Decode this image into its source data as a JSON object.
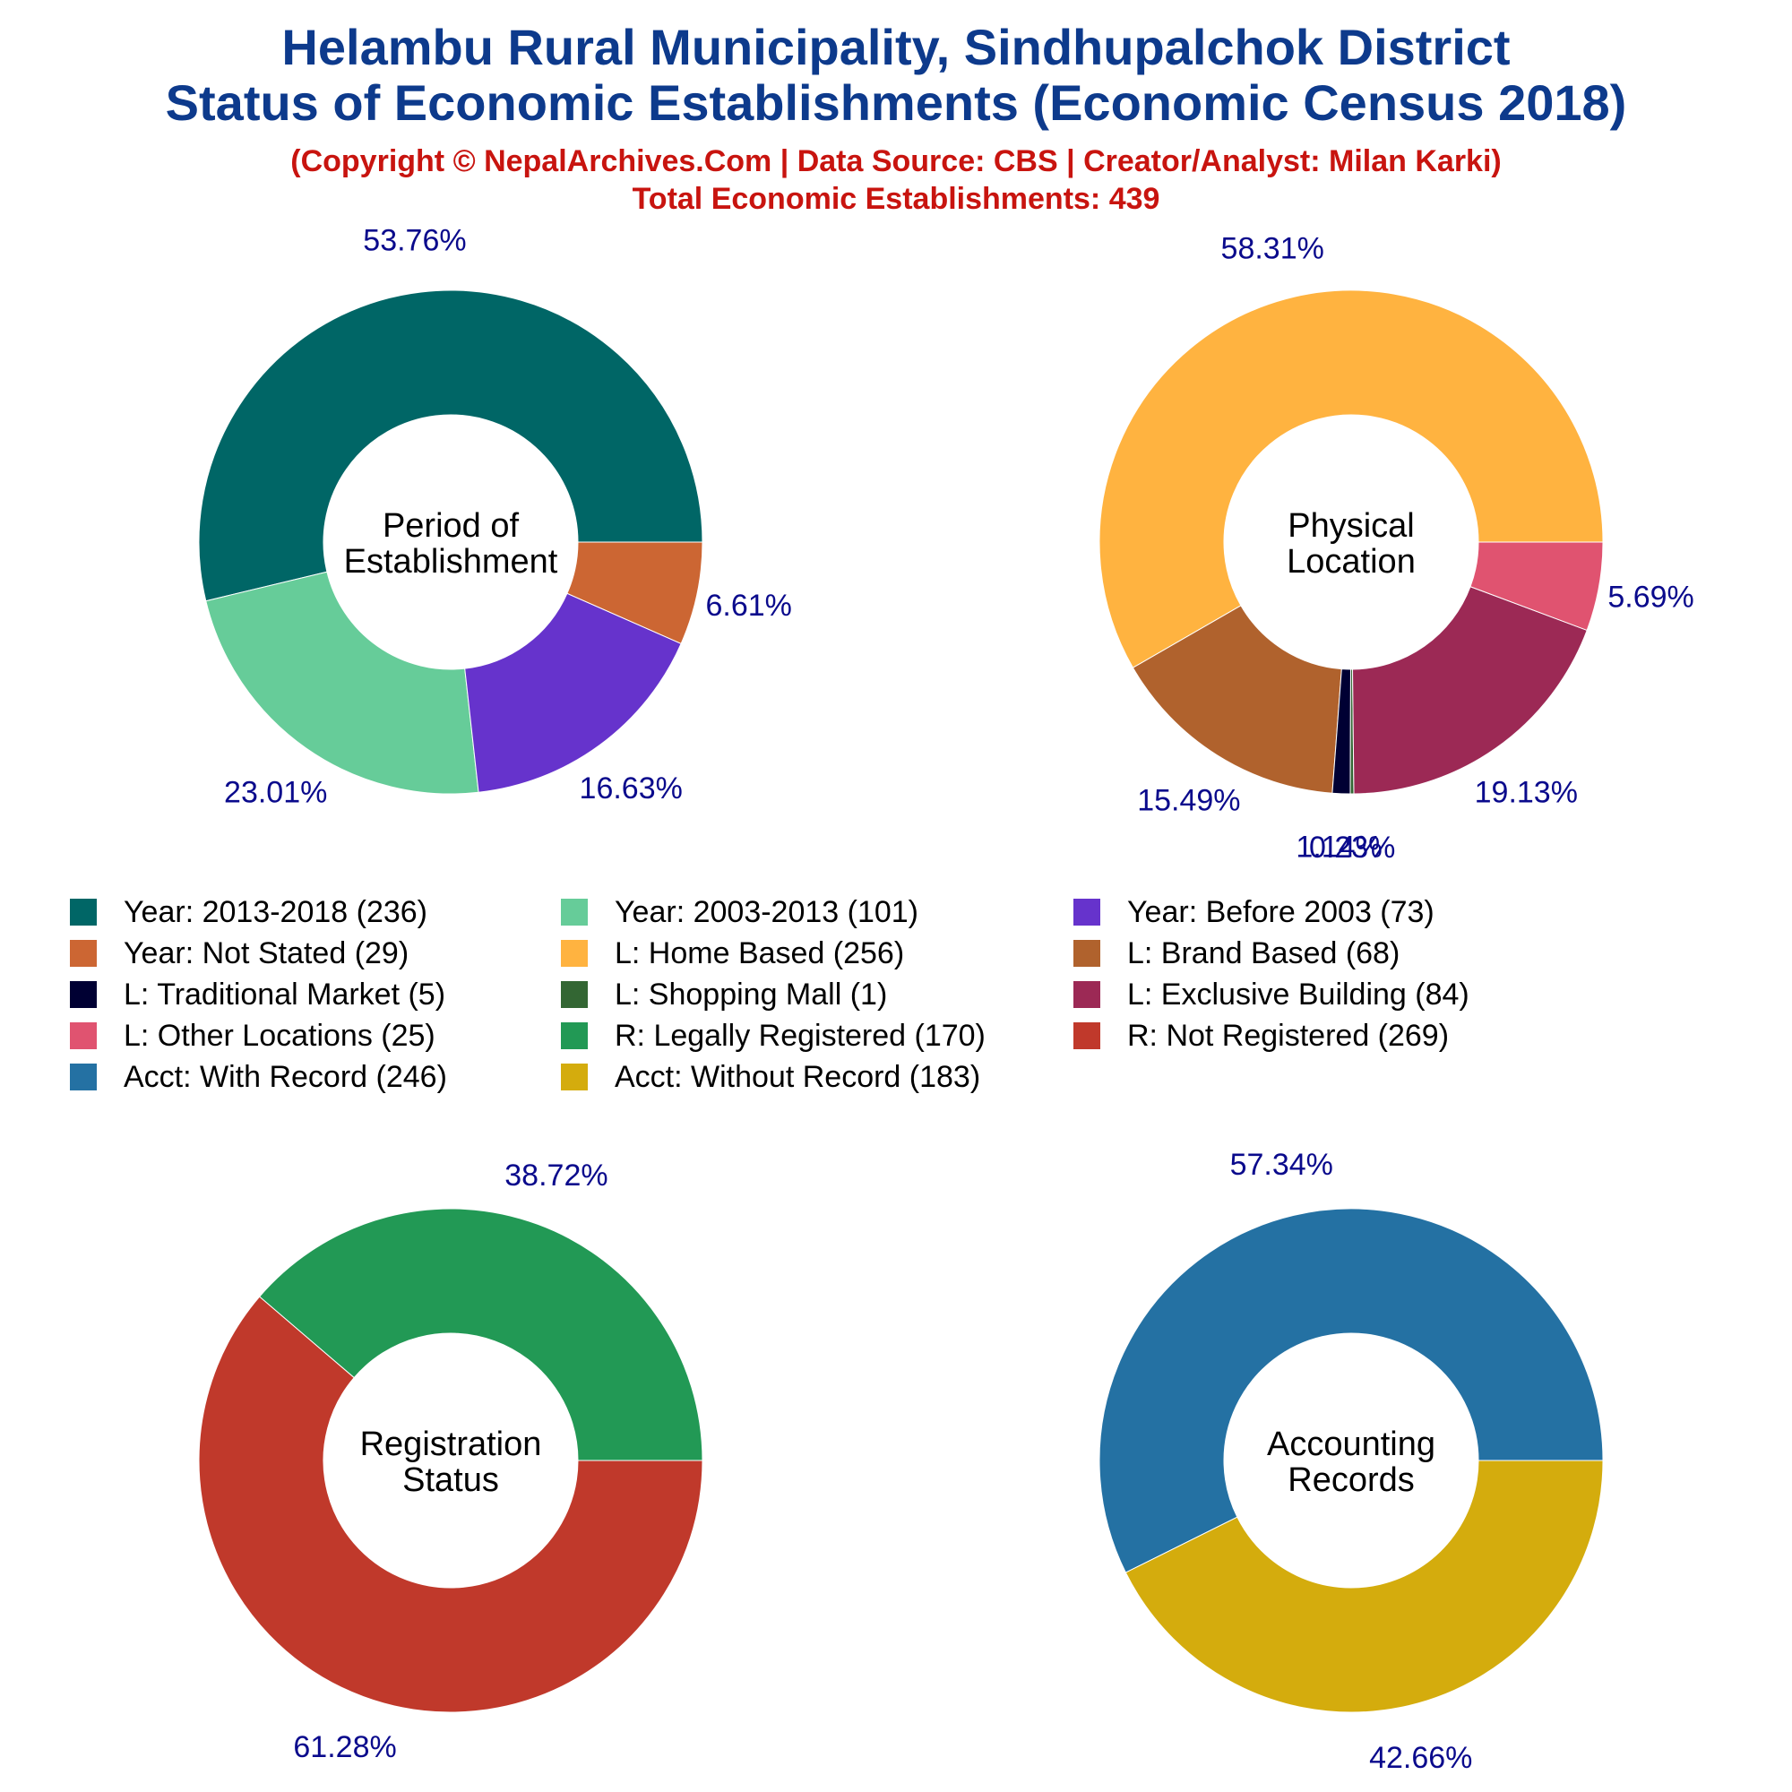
{
  "header": {
    "title_line1": "Helambu Rural Municipality, Sindhupalchok District",
    "title_line2": "Status of Economic Establishments (Economic Census 2018)",
    "copyright": "(Copyright © NepalArchives.Com | Data Source: CBS | Creator/Analyst: Milan Karki)",
    "total": "Total Economic Establishments: 439"
  },
  "chart_data": [
    {
      "type": "pie",
      "center_label": [
        "Period of",
        "Establishment"
      ],
      "categories": [
        "Year: 2013-2018",
        "Year: 2003-2013",
        "Year: Before 2003",
        "Year: Not Stated"
      ],
      "values": [
        236,
        101,
        73,
        29
      ],
      "percent_labels": [
        "53.76%",
        "23.01%",
        "16.63%",
        "6.61%"
      ],
      "colors": [
        "#006666",
        "#66cc99",
        "#6633cc",
        "#cc6633"
      ]
    },
    {
      "type": "pie",
      "center_label": [
        "Physical",
        "Location"
      ],
      "categories": [
        "L: Home Based",
        "L: Brand Based",
        "L: Traditional Market",
        "L: Shopping Mall",
        "L: Exclusive Building",
        "L: Other Locations"
      ],
      "values": [
        256,
        68,
        5,
        1,
        84,
        25
      ],
      "percent_labels": [
        "58.31%",
        "15.49%",
        "1.14%",
        "0.23%",
        "19.13%",
        "5.69%"
      ],
      "colors": [
        "#ffb340",
        "#b0622d",
        "#000033",
        "#336633",
        "#9c2955",
        "#e05370"
      ]
    },
    {
      "type": "pie",
      "center_label": [
        "Registration",
        "Status"
      ],
      "categories": [
        "R: Not Registered",
        "R: Legally Registered"
      ],
      "values": [
        269,
        170
      ],
      "percent_labels": [
        "61.28%",
        "38.72%"
      ],
      "colors": [
        "#c0392b",
        "#229955"
      ]
    },
    {
      "type": "pie",
      "center_label": [
        "Accounting",
        "Records"
      ],
      "categories": [
        "Acct: With Record",
        "Acct: Without Record"
      ],
      "values": [
        246,
        183
      ],
      "percent_labels": [
        "57.34%",
        "42.66%"
      ],
      "colors": [
        "#2471a3",
        "#d4ac0d"
      ]
    }
  ],
  "legend": [
    {
      "label": "Year: 2013-2018 (236)",
      "color": "#006666"
    },
    {
      "label": "Year: 2003-2013 (101)",
      "color": "#66cc99"
    },
    {
      "label": "Year: Before 2003 (73)",
      "color": "#6633cc"
    },
    {
      "label": "Year: Not Stated (29)",
      "color": "#cc6633"
    },
    {
      "label": "L: Home Based (256)",
      "color": "#ffb340"
    },
    {
      "label": "L: Brand Based (68)",
      "color": "#b0622d"
    },
    {
      "label": "L: Traditional Market (5)",
      "color": "#000033"
    },
    {
      "label": "L: Shopping Mall (1)",
      "color": "#336633"
    },
    {
      "label": "L: Exclusive Building (84)",
      "color": "#9c2955"
    },
    {
      "label": "L: Other Locations (25)",
      "color": "#e05370"
    },
    {
      "label": "R: Legally Registered (170)",
      "color": "#229955"
    },
    {
      "label": "R: Not Registered (269)",
      "color": "#c0392b"
    },
    {
      "label": "Acct: With Record (246)",
      "color": "#2471a3"
    },
    {
      "label": "Acct: Without Record (183)",
      "color": "#d4ac0d"
    }
  ]
}
